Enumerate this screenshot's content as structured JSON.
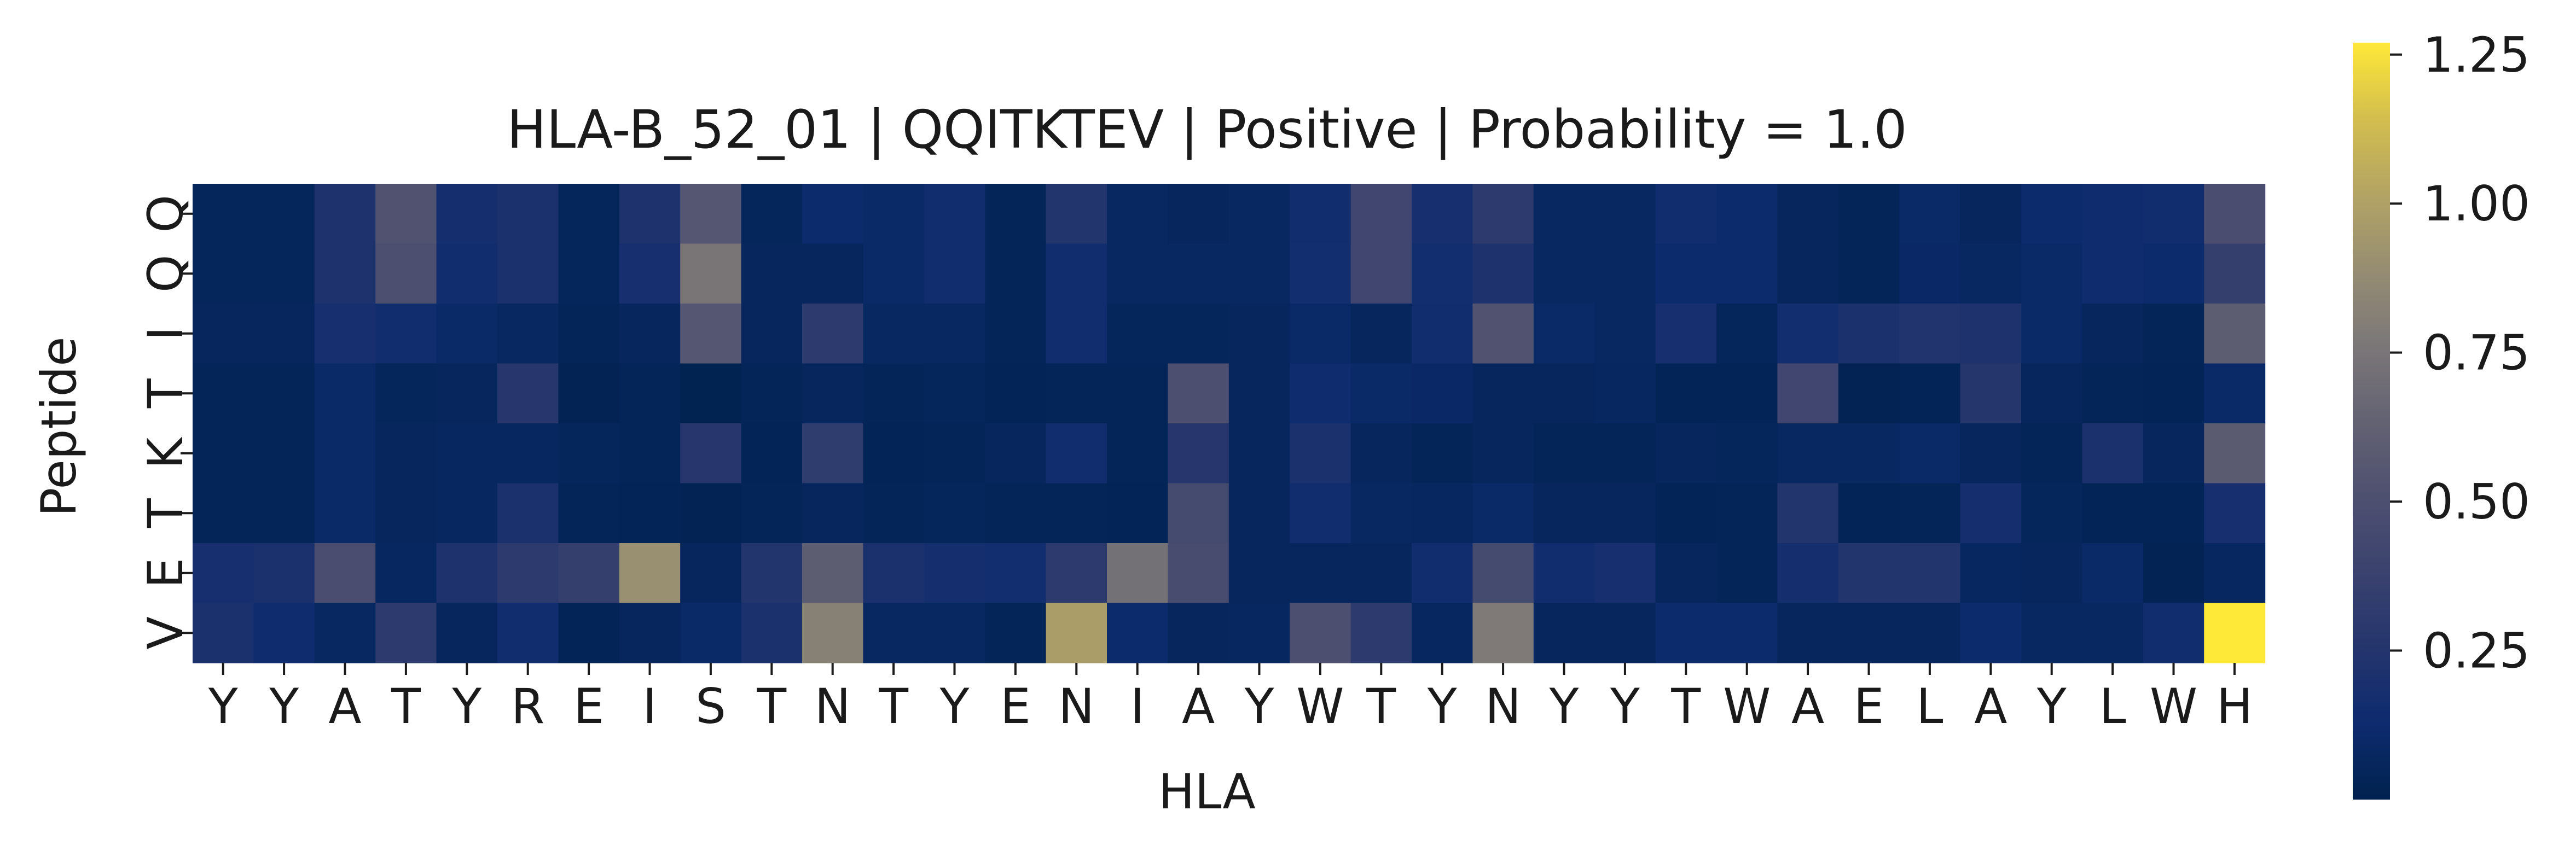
{
  "chart_data": {
    "type": "heatmap",
    "title": "HLA-B_52_01 | QQITKTEV | Positive | Probability = 1.0",
    "xlabel": "HLA",
    "ylabel": "Peptide",
    "x_labels": [
      "Y",
      "Y",
      "A",
      "T",
      "Y",
      "R",
      "E",
      "I",
      "S",
      "T",
      "N",
      "T",
      "Y",
      "E",
      "N",
      "I",
      "A",
      "Y",
      "W",
      "T",
      "Y",
      "N",
      "Y",
      "Y",
      "T",
      "W",
      "A",
      "E",
      "L",
      "A",
      "Y",
      "L",
      "W",
      "H"
    ],
    "y_labels": [
      "Q",
      "Q",
      "I",
      "T",
      "K",
      "T",
      "E",
      "V"
    ],
    "colormap": "cividis",
    "colorbar": {
      "min": 0.0,
      "max": 1.27,
      "ticks": [
        0.25,
        0.5,
        0.75,
        1.0,
        1.25
      ],
      "tick_labels": [
        "0.25",
        "0.50",
        "0.75",
        "1.00",
        "1.25"
      ]
    },
    "values": [
      [
        0.05,
        0.05,
        0.22,
        0.52,
        0.17,
        0.2,
        0.05,
        0.22,
        0.55,
        0.05,
        0.12,
        0.1,
        0.15,
        0.04,
        0.25,
        0.08,
        0.06,
        0.08,
        0.15,
        0.42,
        0.18,
        0.3,
        0.08,
        0.08,
        0.15,
        0.12,
        0.06,
        0.04,
        0.1,
        0.06,
        0.12,
        0.14,
        0.15,
        0.48
      ],
      [
        0.05,
        0.05,
        0.22,
        0.5,
        0.15,
        0.2,
        0.05,
        0.18,
        0.75,
        0.06,
        0.06,
        0.1,
        0.15,
        0.04,
        0.15,
        0.08,
        0.08,
        0.08,
        0.16,
        0.42,
        0.16,
        0.22,
        0.08,
        0.08,
        0.12,
        0.12,
        0.06,
        0.04,
        0.09,
        0.08,
        0.1,
        0.14,
        0.12,
        0.35
      ],
      [
        0.06,
        0.06,
        0.18,
        0.15,
        0.1,
        0.08,
        0.04,
        0.06,
        0.55,
        0.06,
        0.3,
        0.08,
        0.08,
        0.04,
        0.15,
        0.05,
        0.05,
        0.06,
        0.1,
        0.06,
        0.15,
        0.52,
        0.1,
        0.08,
        0.18,
        0.05,
        0.16,
        0.2,
        0.24,
        0.22,
        0.1,
        0.06,
        0.04,
        0.6
      ],
      [
        0.04,
        0.04,
        0.1,
        0.05,
        0.06,
        0.27,
        0.02,
        0.04,
        0.01,
        0.04,
        0.06,
        0.04,
        0.05,
        0.03,
        0.04,
        0.04,
        0.5,
        0.06,
        0.14,
        0.1,
        0.09,
        0.06,
        0.06,
        0.07,
        0.03,
        0.03,
        0.42,
        0.02,
        0.03,
        0.26,
        0.06,
        0.04,
        0.03,
        0.1
      ],
      [
        0.04,
        0.04,
        0.1,
        0.06,
        0.07,
        0.07,
        0.05,
        0.04,
        0.27,
        0.03,
        0.32,
        0.03,
        0.04,
        0.06,
        0.15,
        0.04,
        0.27,
        0.06,
        0.2,
        0.06,
        0.04,
        0.06,
        0.04,
        0.04,
        0.06,
        0.05,
        0.08,
        0.08,
        0.1,
        0.06,
        0.04,
        0.2,
        0.06,
        0.58
      ],
      [
        0.04,
        0.04,
        0.1,
        0.06,
        0.07,
        0.2,
        0.04,
        0.03,
        0.02,
        0.04,
        0.06,
        0.04,
        0.05,
        0.04,
        0.04,
        0.03,
        0.45,
        0.06,
        0.15,
        0.08,
        0.07,
        0.1,
        0.06,
        0.06,
        0.03,
        0.04,
        0.25,
        0.03,
        0.04,
        0.17,
        0.05,
        0.03,
        0.03,
        0.18
      ],
      [
        0.18,
        0.2,
        0.48,
        0.07,
        0.22,
        0.3,
        0.35,
        0.9,
        0.06,
        0.25,
        0.6,
        0.2,
        0.17,
        0.16,
        0.3,
        0.72,
        0.47,
        0.06,
        0.06,
        0.06,
        0.15,
        0.45,
        0.15,
        0.18,
        0.06,
        0.04,
        0.17,
        0.25,
        0.25,
        0.07,
        0.06,
        0.1,
        0.02,
        0.07
      ],
      [
        0.2,
        0.14,
        0.08,
        0.3,
        0.06,
        0.15,
        0.03,
        0.06,
        0.1,
        0.2,
        0.82,
        0.08,
        0.08,
        0.04,
        0.98,
        0.12,
        0.06,
        0.07,
        0.5,
        0.3,
        0.07,
        0.78,
        0.06,
        0.06,
        0.12,
        0.12,
        0.06,
        0.06,
        0.06,
        0.12,
        0.08,
        0.08,
        0.15,
        1.27
      ]
    ]
  }
}
